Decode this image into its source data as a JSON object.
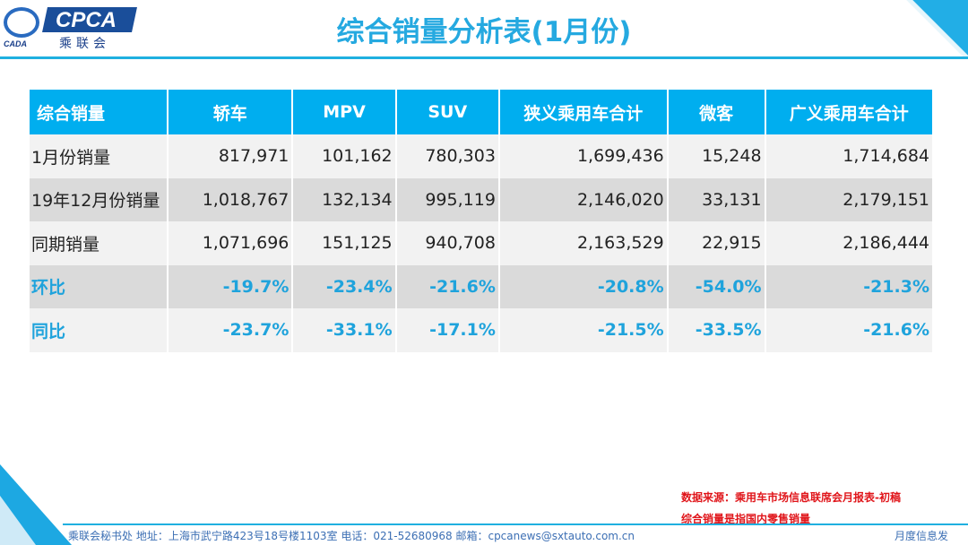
{
  "logo": {
    "brand": "CPCA",
    "cn": "乘联会",
    "sub": "CADA"
  },
  "title": "综合销量分析表(1月份)",
  "table": {
    "headers": [
      "综合销量",
      "轿车",
      "MPV",
      "SUV",
      "狭义乘用车合计",
      "微客",
      "广义乘用车合计"
    ],
    "rows": [
      [
        "1月份销量",
        "817,971",
        "101,162",
        "780,303",
        "1,699,436",
        "15,248",
        "1,714,684"
      ],
      [
        "19年12月份销量",
        "1,018,767",
        "132,134",
        "995,119",
        "2,146,020",
        "33,131",
        "2,179,151"
      ],
      [
        "同期销量",
        "1,071,696",
        "151,125",
        "940,708",
        "2,163,529",
        "22,915",
        "2,186,444"
      ],
      [
        "环比",
        "-19.7%",
        "-23.4%",
        "-21.6%",
        "-20.8%",
        "-54.0%",
        "-21.3%"
      ],
      [
        "同比",
        "-23.7%",
        "-33.1%",
        "-17.1%",
        "-21.5%",
        "-33.5%",
        "-21.6%"
      ]
    ]
  },
  "notes": {
    "source": "数据来源：乘用车市场信息联席会月报表-初稿",
    "definition": "综合销量是指国内零售销量"
  },
  "footer": {
    "text": "乘联会秘书处   地址：上海市武宁路423号18号楼1103室  电话：021-52680968   邮箱：cpcanews@sxtauto.com.cn",
    "right": "月度信息发"
  },
  "colors": {
    "accent": "#00aeef",
    "pct": "#1fa3dc",
    "note": "#e0151a"
  }
}
